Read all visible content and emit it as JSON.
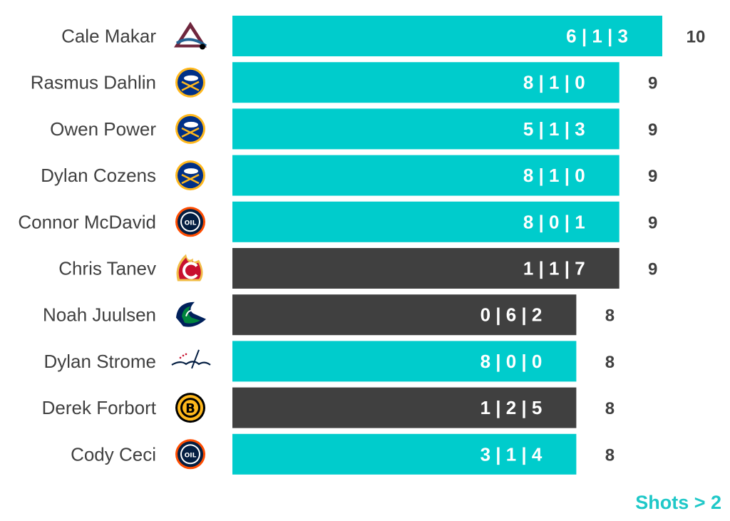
{
  "chart_data": {
    "type": "bar",
    "orientation": "horizontal",
    "categories": [
      "Cale Makar",
      "Rasmus Dahlin",
      "Owen Power",
      "Dylan Cozens",
      "Connor McDavid",
      "Chris Tanev",
      "Noah Juulsen",
      "Dylan Strome",
      "Derek Forbort",
      "Cody Ceci"
    ],
    "values": [
      10,
      9,
      9,
      9,
      9,
      9,
      8,
      8,
      8,
      8
    ],
    "bar_labels": [
      "6 | 1 | 3",
      "8 | 1 | 0",
      "5 | 1 | 3",
      "8 | 1 | 0",
      "8 | 0 | 1",
      "1 | 1 | 7",
      "0 | 6 | 2",
      "8 | 0 | 0",
      "1 | 2 | 5",
      "3 | 1 | 4"
    ],
    "bar_colors": [
      "#00cccc",
      "#00cccc",
      "#00cccc",
      "#00cccc",
      "#00cccc",
      "#404040",
      "#404040",
      "#00cccc",
      "#404040",
      "#00cccc"
    ],
    "team_icons": [
      "avalanche-logo-icon",
      "sabres-logo-icon",
      "sabres-logo-icon",
      "sabres-logo-icon",
      "oilers-logo-icon",
      "flames-logo-icon",
      "canucks-logo-icon",
      "capitals-logo-icon",
      "bruins-logo-icon",
      "oilers-logo-icon"
    ],
    "xlim": [
      0,
      10
    ],
    "grid": false,
    "title": "",
    "xlabel": "",
    "ylabel": ""
  },
  "legend_note": {
    "text": "Shots > 2",
    "color": "#1fc8c8"
  },
  "colors": {
    "highlight": "#00cccc",
    "dark": "#404040",
    "name_text": "#404040"
  }
}
